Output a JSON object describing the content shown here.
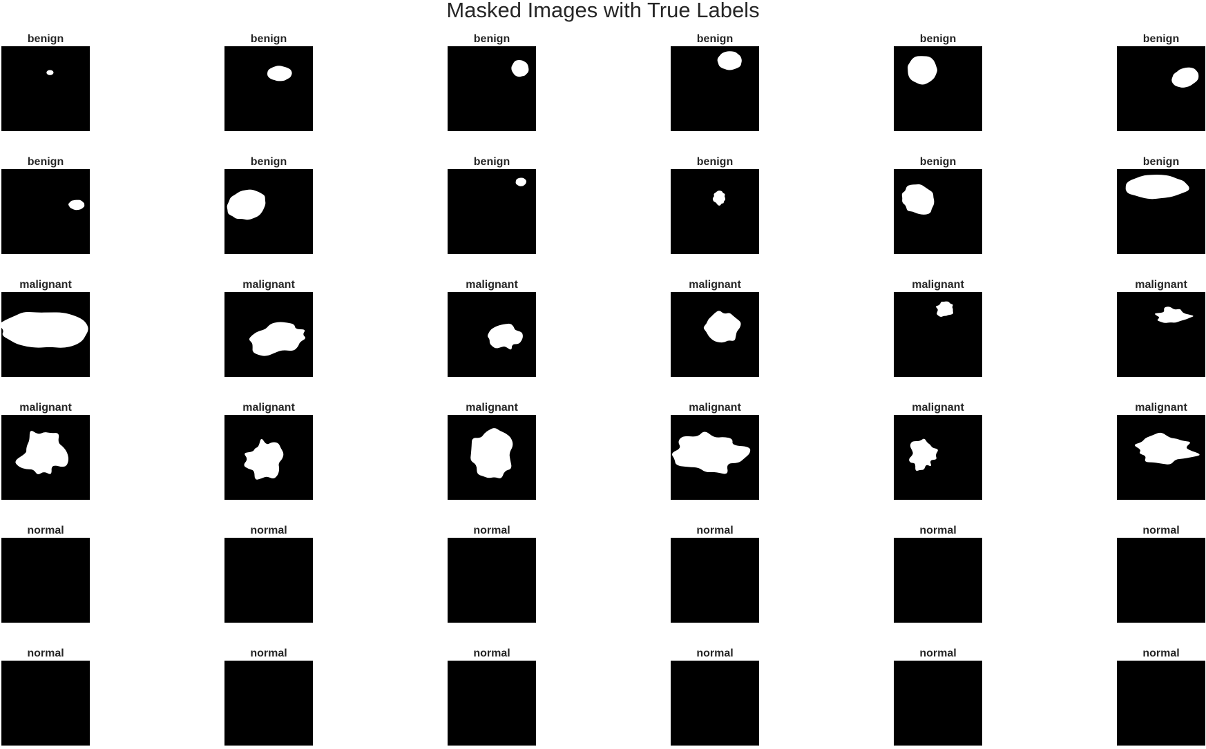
{
  "title": "Masked Images with True Labels",
  "colors": {
    "mask_background": "#000000",
    "mask_foreground": "#ffffff",
    "text": "#262626"
  },
  "rows": [
    {
      "label": "benign",
      "cells": [
        {
          "label": "benign",
          "shape": "tiny-blob"
        },
        {
          "label": "benign",
          "shape": "small-ellipse"
        },
        {
          "label": "benign",
          "shape": "small-round"
        },
        {
          "label": "benign",
          "shape": "small-round"
        },
        {
          "label": "benign",
          "shape": "oval"
        },
        {
          "label": "benign",
          "shape": "tilted-ellipse"
        }
      ]
    },
    {
      "label": "benign",
      "cells": [
        {
          "label": "benign",
          "shape": "small-ellipse"
        },
        {
          "label": "benign",
          "shape": "large-ellipse"
        },
        {
          "label": "benign",
          "shape": "tiny-blob"
        },
        {
          "label": "benign",
          "shape": "small-polygon"
        },
        {
          "label": "benign",
          "shape": "irregular-round"
        },
        {
          "label": "benign",
          "shape": "wide-blob"
        }
      ]
    },
    {
      "label": "malignant",
      "cells": [
        {
          "label": "malignant",
          "shape": "large-irregular"
        },
        {
          "label": "malignant",
          "shape": "irregular"
        },
        {
          "label": "malignant",
          "shape": "irregular"
        },
        {
          "label": "malignant",
          "shape": "irregular"
        },
        {
          "label": "malignant",
          "shape": "small-irregular"
        },
        {
          "label": "malignant",
          "shape": "spiky"
        }
      ]
    },
    {
      "label": "malignant",
      "cells": [
        {
          "label": "malignant",
          "shape": "spiky"
        },
        {
          "label": "malignant",
          "shape": "spiky"
        },
        {
          "label": "malignant",
          "shape": "irregular"
        },
        {
          "label": "malignant",
          "shape": "irregular"
        },
        {
          "label": "malignant",
          "shape": "spiky"
        },
        {
          "label": "malignant",
          "shape": "spiky"
        }
      ]
    },
    {
      "label": "normal",
      "cells": [
        {
          "label": "normal",
          "shape": "empty"
        },
        {
          "label": "normal",
          "shape": "empty"
        },
        {
          "label": "normal",
          "shape": "empty"
        },
        {
          "label": "normal",
          "shape": "empty"
        },
        {
          "label": "normal",
          "shape": "empty"
        },
        {
          "label": "normal",
          "shape": "empty"
        }
      ]
    },
    {
      "label": "normal",
      "cells": [
        {
          "label": "normal",
          "shape": "empty"
        },
        {
          "label": "normal",
          "shape": "empty"
        },
        {
          "label": "normal",
          "shape": "empty"
        },
        {
          "label": "normal",
          "shape": "empty"
        },
        {
          "label": "normal",
          "shape": "empty"
        },
        {
          "label": "normal",
          "shape": "empty"
        }
      ]
    }
  ]
}
